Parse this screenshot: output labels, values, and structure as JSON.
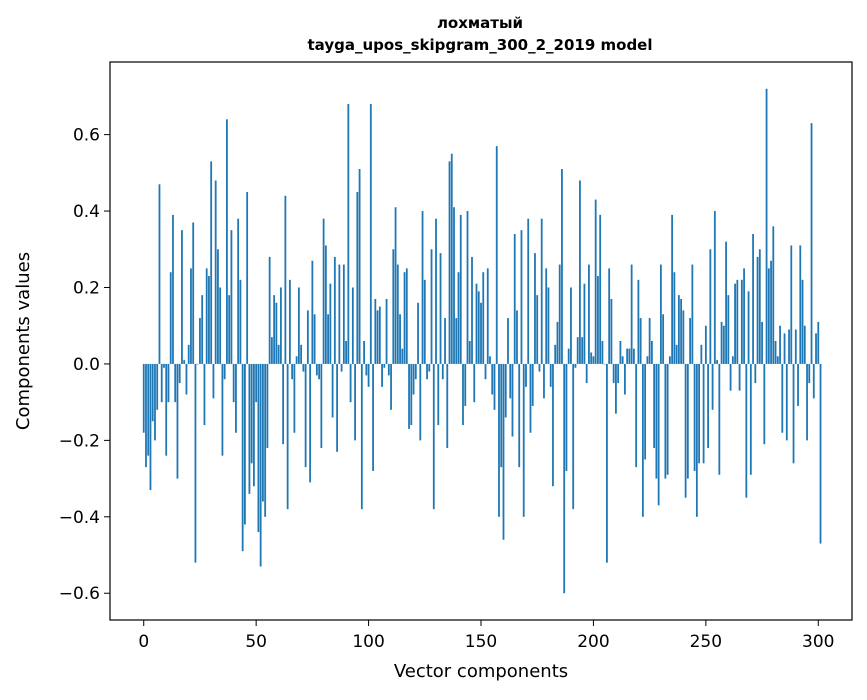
{
  "chart_data": {
    "type": "bar",
    "title_line1": "лохматый",
    "title_line2": "tayga_upos_skipgram_300_2_2019 model",
    "xlabel": "Vector components",
    "ylabel": "Components values",
    "xlim": [
      -15,
      315
    ],
    "ylim": [
      -0.67,
      0.79
    ],
    "x_ticks": [
      0,
      50,
      100,
      150,
      200,
      250,
      300
    ],
    "x_tick_labels": [
      "0",
      "50",
      "100",
      "150",
      "200",
      "250",
      "300"
    ],
    "y_ticks": [
      -0.6,
      -0.4,
      -0.2,
      0.0,
      0.2,
      0.4,
      0.6
    ],
    "y_tick_labels": [
      "−0.6",
      "−0.4",
      "−0.2",
      "0.0",
      "0.2",
      "0.4",
      "0.6"
    ],
    "bar_color": "#1f77b4",
    "grid": false,
    "values": [
      -0.18,
      -0.27,
      -0.24,
      -0.33,
      -0.15,
      -0.2,
      -0.12,
      0.47,
      -0.1,
      -0.01,
      -0.24,
      -0.1,
      0.24,
      0.39,
      -0.1,
      -0.3,
      -0.05,
      0.35,
      0.01,
      -0.08,
      0.05,
      0.25,
      0.37,
      -0.52,
      0.0,
      0.12,
      0.18,
      -0.16,
      0.25,
      0.23,
      0.53,
      -0.09,
      0.48,
      0.3,
      0.2,
      -0.24,
      -0.04,
      0.64,
      0.18,
      0.35,
      -0.1,
      -0.18,
      0.38,
      0.22,
      -0.49,
      -0.42,
      0.45,
      -0.34,
      -0.26,
      -0.32,
      -0.1,
      -0.44,
      -0.53,
      -0.36,
      -0.4,
      -0.22,
      0.28,
      0.07,
      0.18,
      0.16,
      0.05,
      0.2,
      -0.21,
      0.44,
      -0.38,
      0.22,
      -0.04,
      -0.18,
      0.02,
      0.2,
      0.05,
      -0.02,
      -0.27,
      0.14,
      -0.31,
      0.27,
      0.13,
      -0.03,
      -0.04,
      -0.22,
      0.38,
      0.31,
      0.13,
      0.21,
      -0.14,
      0.28,
      -0.23,
      0.26,
      -0.02,
      0.26,
      0.06,
      0.68,
      -0.1,
      0.2,
      -0.2,
      0.45,
      0.51,
      -0.38,
      0.06,
      -0.03,
      -0.06,
      0.68,
      -0.28,
      0.17,
      0.14,
      0.15,
      -0.06,
      -0.01,
      0.17,
      -0.03,
      -0.12,
      0.3,
      0.41,
      0.26,
      0.13,
      0.04,
      0.24,
      0.25,
      -0.17,
      -0.16,
      -0.08,
      -0.04,
      0.16,
      -0.2,
      0.4,
      0.22,
      -0.04,
      -0.02,
      0.3,
      -0.38,
      0.38,
      -0.16,
      0.29,
      -0.04,
      0.12,
      -0.22,
      0.53,
      0.55,
      0.41,
      0.12,
      0.24,
      0.39,
      -0.16,
      -0.11,
      0.4,
      0.06,
      0.28,
      -0.1,
      0.21,
      0.19,
      0.16,
      0.24,
      -0.04,
      0.25,
      0.02,
      -0.08,
      -0.12,
      0.57,
      -0.4,
      -0.27,
      -0.46,
      -0.14,
      0.12,
      -0.09,
      -0.19,
      0.34,
      0.14,
      -0.27,
      0.35,
      -0.4,
      -0.06,
      0.38,
      -0.18,
      -0.11,
      0.29,
      0.18,
      -0.02,
      0.38,
      -0.09,
      0.25,
      0.2,
      -0.06,
      -0.32,
      0.05,
      0.11,
      0.26,
      0.51,
      -0.6,
      -0.28,
      0.04,
      0.2,
      -0.38,
      -0.01,
      0.07,
      0.48,
      0.07,
      0.21,
      -0.05,
      0.26,
      0.03,
      0.02,
      0.43,
      0.23,
      0.39,
      0.06,
      0.0,
      -0.52,
      0.25,
      0.17,
      -0.05,
      -0.13,
      -0.05,
      0.06,
      0.02,
      -0.08,
      0.04,
      0.04,
      0.26,
      0.04,
      -0.27,
      0.22,
      0.12,
      -0.4,
      -0.25,
      0.02,
      0.12,
      0.06,
      -0.22,
      -0.3,
      -0.37,
      0.26,
      0.13,
      -0.3,
      -0.29,
      0.02,
      0.39,
      0.24,
      0.05,
      0.18,
      0.17,
      0.14,
      -0.35,
      -0.3,
      0.12,
      0.26,
      -0.28,
      -0.4,
      -0.26,
      0.05,
      -0.26,
      0.1,
      -0.22,
      0.3,
      -0.12,
      0.4,
      0.01,
      -0.29,
      0.11,
      0.1,
      0.32,
      0.18,
      -0.07,
      0.02,
      0.21,
      0.22,
      -0.07,
      0.22,
      0.25,
      -0.35,
      0.19,
      -0.29,
      0.34,
      -0.05,
      0.28,
      0.3,
      0.11,
      -0.21,
      0.72,
      0.25,
      0.27,
      0.36,
      0.06,
      0.02,
      0.1,
      -0.18,
      0.08,
      -0.2,
      0.09,
      0.31,
      -0.26,
      0.09,
      -0.11,
      0.31,
      0.22,
      0.1,
      -0.2,
      -0.05,
      0.63,
      -0.09,
      0.08,
      0.11,
      -0.47
    ]
  }
}
